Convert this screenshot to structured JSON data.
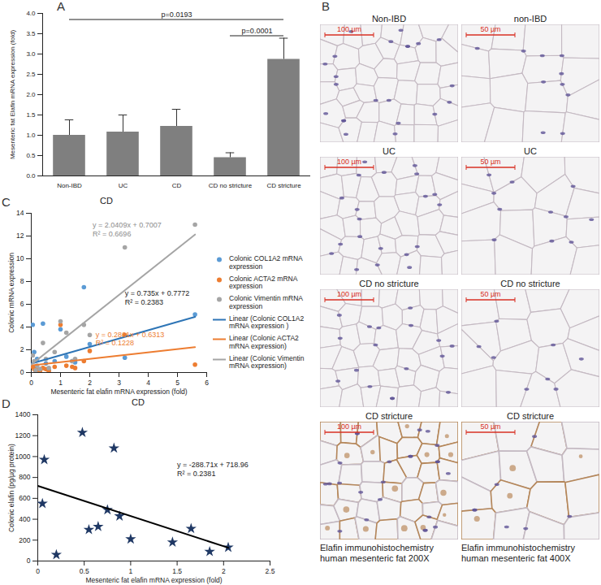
{
  "chart_data": [
    {
      "panel": "A",
      "type": "bar",
      "categories": [
        "Non-IBD",
        "UC",
        "CD",
        "CD no stricture",
        "CD stricture"
      ],
      "values": [
        1.0,
        1.08,
        1.22,
        0.45,
        2.87
      ],
      "errors": [
        0.38,
        0.42,
        0.42,
        0.12,
        0.52
      ],
      "color": "#7f7f7f",
      "ylabel": "Mesenteric fat Elafin mRNA expression (fold)",
      "ylim": [
        0,
        4
      ],
      "yticks": [
        {
          "value": 0,
          "label": "0.0"
        },
        {
          "value": 0.5,
          "label": "0.5"
        },
        {
          "value": 1,
          "label": "1.0"
        },
        {
          "value": 1.5,
          "label": "1.5"
        },
        {
          "value": 2,
          "label": "2.0"
        },
        {
          "value": 2.5,
          "label": "2.5"
        },
        {
          "value": 3,
          "label": "3.0"
        },
        {
          "value": 3.5,
          "label": "3.5"
        },
        {
          "value": 4,
          "label": "4.0"
        }
      ],
      "annotations": [
        {
          "text": "p=0.0193",
          "from": "Non-IBD",
          "to": "CD stricture",
          "y": 3.85
        },
        {
          "text": "p=0.0001",
          "from": "CD no stricture",
          "to": "CD stricture",
          "y": 3.45
        }
      ],
      "grid": false
    },
    {
      "panel": "C",
      "type": "scatter",
      "title": "CD",
      "xlabel": "Mesenteric fat elafin mRNA expression (fold)",
      "ylabel": "Colonic mRNA expression",
      "xlim": [
        0,
        6
      ],
      "xticks": [
        0,
        1,
        2,
        3,
        4,
        5,
        6
      ],
      "ylim": [
        0,
        14
      ],
      "yticks": [
        0,
        2,
        4,
        6,
        8,
        10,
        12,
        14
      ],
      "legend": "right",
      "grid": false,
      "series": [
        {
          "name": "Colonic COL1A2 mRNA expression",
          "type": "scatter",
          "marker": "circle",
          "color": "#5b9bd5",
          "x": [
            0.05,
            0.1,
            0.15,
            0.2,
            0.3,
            0.4,
            0.5,
            0.6,
            0.8,
            1.0,
            1.2,
            1.4,
            1.5,
            1.8,
            2.0,
            3.2,
            5.6
          ],
          "values": [
            4.2,
            1.8,
            0.5,
            1.2,
            0.3,
            4.3,
            0.8,
            0.2,
            1.0,
            3.8,
            1.4,
            1.0,
            0.9,
            7.5,
            2.5,
            1.3,
            5.1
          ]
        },
        {
          "name": "Colonic ACTA2 mRNA expression",
          "type": "scatter",
          "marker": "circle",
          "color": "#ed7d31",
          "x": [
            0.05,
            0.1,
            0.15,
            0.2,
            0.3,
            0.4,
            0.5,
            0.6,
            0.8,
            1.0,
            1.2,
            1.4,
            1.5,
            1.8,
            2.0,
            3.2,
            5.6
          ],
          "values": [
            0.5,
            0.3,
            0.1,
            0.2,
            0.1,
            0.4,
            0.3,
            0.1,
            0.5,
            4.2,
            0.6,
            0.5,
            0.4,
            1.0,
            1.9,
            3.3,
            0.7
          ]
        },
        {
          "name": "Colonic Vimentin mRNA expression",
          "type": "scatter",
          "marker": "circle",
          "color": "#a5a5a5",
          "x": [
            0.05,
            0.1,
            0.15,
            0.2,
            0.3,
            0.4,
            0.5,
            0.6,
            0.8,
            1.0,
            1.2,
            1.4,
            1.5,
            1.8,
            2.0,
            3.2,
            5.6
          ],
          "values": [
            1.5,
            1.0,
            0.2,
            0.6,
            0.3,
            2.6,
            1.2,
            0.4,
            1.8,
            4.5,
            3.5,
            1.0,
            1.2,
            4.2,
            3.3,
            11.0,
            13.0
          ]
        },
        {
          "name": "Linear (Colonic COL1A2 mRNA expression )",
          "type": "line",
          "line_style": "solid",
          "color": "#2e75b6",
          "x": [
            0,
            5.6
          ],
          "values": [
            0.78,
            4.89
          ]
        },
        {
          "name": "Linear (Colonic ACTA2 mRNA expression)",
          "type": "line",
          "line_style": "solid",
          "color": "#ed7d31",
          "x": [
            0,
            5.6
          ],
          "values": [
            0.63,
            2.23
          ]
        },
        {
          "name": "Linear (Colonic Vimentin mRNA expression)",
          "type": "line",
          "line_style": "solid",
          "color": "#a5a5a5",
          "x": [
            0,
            5.6
          ],
          "values": [
            0.7,
            12.13
          ]
        }
      ],
      "annotations": [
        {
          "text": [
            "y = 2.0409x + 0.7007",
            "R² = 0.6696"
          ],
          "x": 2.1,
          "y": 12.6,
          "color": "#8c8c8c"
        },
        {
          "text": [
            "y = 0.735x + 0.7772",
            "R² = 0.2383"
          ],
          "x": 3.2,
          "y": 6.6,
          "color": "#222222"
        },
        {
          "text": [
            "y = 0.2861x + 0.6313",
            "R² = 0.1228"
          ],
          "x": 2.2,
          "y": 3.0,
          "color": "#ed7d31"
        }
      ]
    },
    {
      "panel": "D",
      "type": "scatter",
      "title": "CD",
      "xlabel": "Mesenteric fat elafin mRNA expression (fold)",
      "ylabel": "Colonic elafin (pg/µg protein)",
      "xlim": [
        0,
        2.5
      ],
      "xticks": [
        0,
        0.5,
        1,
        1.5,
        2,
        2.5
      ],
      "ylim": [
        0,
        1400
      ],
      "yticks": [
        0,
        200,
        400,
        600,
        800,
        1000,
        1200,
        1400
      ],
      "grid": false,
      "series": [
        {
          "type": "scatter",
          "marker": "star",
          "color": "#1f3864",
          "x": [
            0.05,
            0.07,
            0.2,
            0.48,
            0.55,
            0.65,
            0.75,
            0.82,
            0.88,
            1.0,
            1.45,
            1.65,
            1.85,
            2.05
          ],
          "values": [
            550,
            970,
            60,
            1230,
            300,
            330,
            490,
            1080,
            430,
            210,
            180,
            310,
            90,
            130
          ]
        },
        {
          "type": "line",
          "line_style": "solid",
          "color": "#000000",
          "x": [
            0,
            2.05
          ],
          "values": [
            718.96,
            127.1
          ]
        }
      ],
      "annotations": [
        {
          "text": [
            "y = -288.71x + 718.96",
            "R² = 0.2381"
          ],
          "x": 1.5,
          "y": 880,
          "color": "#222222"
        }
      ]
    }
  ],
  "panel_B": {
    "panel": "B",
    "rows": [
      [
        {
          "label": "Non-IBD",
          "scale_bar": "100 µm"
        },
        {
          "label": "non-IBD",
          "scale_bar": "50 µm"
        }
      ],
      [
        {
          "label": "UC",
          "scale_bar": "100 µm"
        },
        {
          "label": "UC",
          "scale_bar": "50 µm"
        }
      ],
      [
        {
          "label": "CD no stricture",
          "scale_bar": "100 µm"
        },
        {
          "label": "CD no stricture",
          "scale_bar": "50 µm"
        }
      ],
      [
        {
          "label": "CD stricture",
          "scale_bar": "100 µm",
          "stained": true
        },
        {
          "label": "CD stricture",
          "scale_bar": "50 µm",
          "stained": true
        }
      ]
    ],
    "captions": [
      "Elafin immunohistochemistry human mesenteric fat 200X",
      "Elafin immunohistochemistry human mesenteric fat 400X"
    ]
  }
}
